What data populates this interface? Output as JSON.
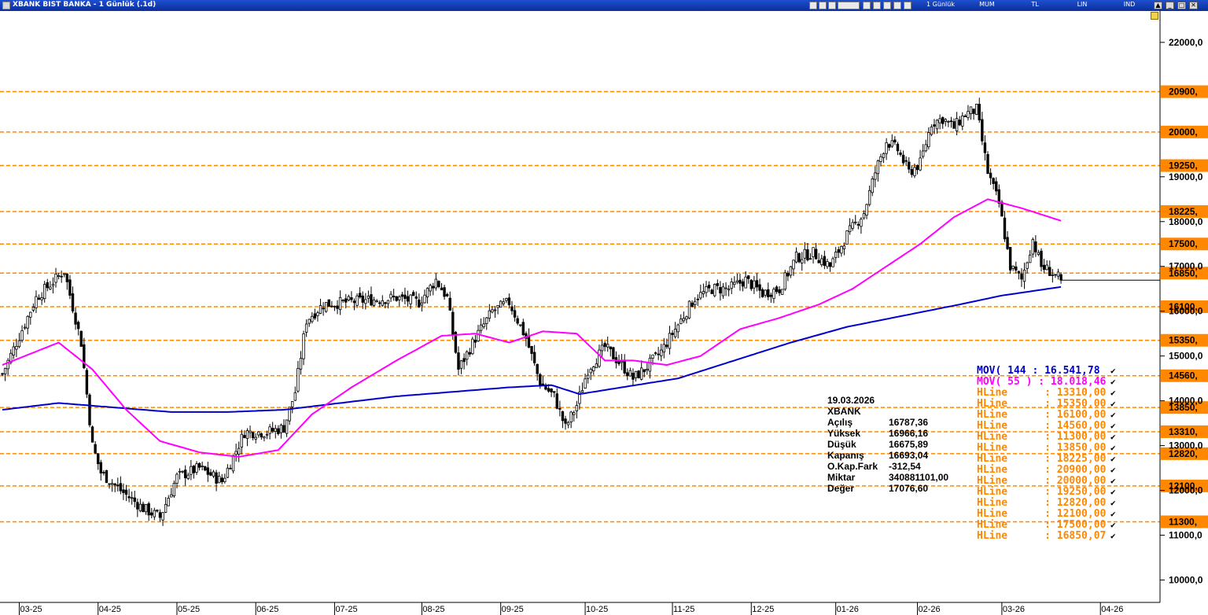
{
  "window": {
    "title": "XBANK BIST BANKA - 1 Günlük (.1d)",
    "modes": [
      "1 Günlük",
      "MUM",
      "TL",
      "LIN",
      "IND"
    ]
  },
  "chart_data": {
    "type": "candlestick",
    "ylim": [
      9500,
      22700
    ],
    "yticks": [
      "10000,0",
      "11000,0",
      "12000,0",
      "13000,0",
      "14000,0",
      "15000,0",
      "16000,0",
      "17000,0",
      "18000,0",
      "19000,0",
      "22000,0"
    ],
    "ytick_values": [
      10000,
      11000,
      12000,
      13000,
      14000,
      15000,
      16000,
      17000,
      18000,
      19000,
      22000
    ],
    "xticks": [
      "03-25",
      "04-25",
      "05-25",
      "06-25",
      "07-25",
      "08-25",
      "09-25",
      "10-25",
      "11-25",
      "12-25",
      "01-26",
      "02-26",
      "03-26",
      "04-26"
    ],
    "hlines": [
      {
        "value": 20900,
        "label": "20900,"
      },
      {
        "value": 20000,
        "label": "20000,"
      },
      {
        "value": 19250,
        "label": "19250,"
      },
      {
        "value": 18225,
        "label": "18225,"
      },
      {
        "value": 17500,
        "label": "17500,"
      },
      {
        "value": 16850.07,
        "label": "16850,"
      },
      {
        "value": 16100,
        "label": "16100,"
      },
      {
        "value": 15350,
        "label": "15350,"
      },
      {
        "value": 14560,
        "label": "14560,"
      },
      {
        "value": 13850,
        "label": "13850,"
      },
      {
        "value": 13310,
        "label": "13310,"
      },
      {
        "value": 12820,
        "label": "12820,"
      },
      {
        "value": 12100,
        "label": "12100,"
      },
      {
        "value": 11300,
        "label": "11300,"
      }
    ],
    "last_price": 16693.04,
    "keypoints": [
      [
        0,
        14600
      ],
      [
        5,
        15300
      ],
      [
        12,
        16300
      ],
      [
        22,
        16900
      ],
      [
        28,
        15300
      ],
      [
        32,
        13000
      ],
      [
        35,
        12400
      ],
      [
        42,
        12000
      ],
      [
        50,
        11600
      ],
      [
        56,
        11400
      ],
      [
        62,
        12300
      ],
      [
        70,
        12500
      ],
      [
        78,
        12200
      ],
      [
        86,
        13300
      ],
      [
        94,
        13300
      ],
      [
        100,
        13400
      ],
      [
        104,
        14200
      ],
      [
        108,
        15800
      ],
      [
        114,
        16150
      ],
      [
        122,
        16200
      ],
      [
        130,
        16250
      ],
      [
        140,
        16300
      ],
      [
        148,
        16200
      ],
      [
        154,
        16700
      ],
      [
        158,
        16300
      ],
      [
        162,
        14700
      ],
      [
        168,
        15400
      ],
      [
        174,
        16000
      ],
      [
        180,
        16200
      ],
      [
        186,
        15400
      ],
      [
        191,
        14400
      ],
      [
        196,
        14100
      ],
      [
        200,
        13400
      ],
      [
        204,
        13900
      ],
      [
        208,
        14700
      ],
      [
        214,
        15200
      ],
      [
        220,
        14800
      ],
      [
        224,
        14500
      ],
      [
        228,
        14700
      ],
      [
        234,
        15100
      ],
      [
        240,
        15700
      ],
      [
        246,
        16300
      ],
      [
        252,
        16500
      ],
      [
        258,
        16500
      ],
      [
        264,
        16700
      ],
      [
        270,
        16400
      ],
      [
        276,
        16500
      ],
      [
        282,
        17200
      ],
      [
        288,
        17300
      ],
      [
        294,
        17000
      ],
      [
        300,
        17700
      ],
      [
        306,
        18200
      ],
      [
        310,
        19100
      ],
      [
        314,
        19800
      ],
      [
        318,
        19600
      ],
      [
        322,
        19100
      ],
      [
        326,
        19300
      ],
      [
        330,
        20200
      ],
      [
        334,
        20300
      ],
      [
        338,
        20100
      ],
      [
        342,
        20400
      ],
      [
        346,
        20500
      ],
      [
        350,
        19100
      ],
      [
        354,
        18400
      ],
      [
        358,
        17000
      ],
      [
        362,
        16700
      ],
      [
        366,
        17600
      ],
      [
        369,
        17000
      ],
      [
        372,
        16900
      ],
      [
        376,
        16693
      ]
    ],
    "ma144_points": [
      [
        0,
        13800
      ],
      [
        20,
        13950
      ],
      [
        40,
        13850
      ],
      [
        60,
        13750
      ],
      [
        80,
        13750
      ],
      [
        100,
        13800
      ],
      [
        120,
        13950
      ],
      [
        140,
        14100
      ],
      [
        160,
        14200
      ],
      [
        180,
        14300
      ],
      [
        195,
        14350
      ],
      [
        205,
        14150
      ],
      [
        220,
        14300
      ],
      [
        240,
        14500
      ],
      [
        260,
        14900
      ],
      [
        280,
        15300
      ],
      [
        300,
        15650
      ],
      [
        320,
        15900
      ],
      [
        340,
        16150
      ],
      [
        355,
        16350
      ],
      [
        376,
        16541.78
      ]
    ],
    "ma55_points": [
      [
        0,
        14800
      ],
      [
        20,
        15300
      ],
      [
        32,
        14700
      ],
      [
        44,
        13800
      ],
      [
        56,
        13100
      ],
      [
        70,
        12850
      ],
      [
        84,
        12750
      ],
      [
        98,
        12900
      ],
      [
        110,
        13700
      ],
      [
        124,
        14300
      ],
      [
        140,
        14900
      ],
      [
        156,
        15450
      ],
      [
        168,
        15500
      ],
      [
        180,
        15300
      ],
      [
        192,
        15550
      ],
      [
        204,
        15500
      ],
      [
        214,
        14900
      ],
      [
        224,
        14900
      ],
      [
        236,
        14800
      ],
      [
        248,
        15000
      ],
      [
        262,
        15600
      ],
      [
        276,
        15850
      ],
      [
        290,
        16150
      ],
      [
        302,
        16500
      ],
      [
        314,
        17000
      ],
      [
        326,
        17500
      ],
      [
        338,
        18100
      ],
      [
        350,
        18500
      ],
      [
        362,
        18300
      ],
      [
        376,
        18018.46
      ]
    ]
  },
  "info_panel": {
    "date": "19.03.2026",
    "symbol": "XBANK",
    "rows": [
      {
        "label": "Açılış",
        "value": "16787,36"
      },
      {
        "label": "Yüksek",
        "value": "16966,16"
      },
      {
        "label": "Düşük",
        "value": "16675,89"
      },
      {
        "label": "Kapanış",
        "value": "16693,04"
      },
      {
        "label": "O.Kap.Fark",
        "value": "-312,54"
      },
      {
        "label": "Miktar",
        "value": "340881101,00"
      },
      {
        "label": "Değer",
        "value": "17076,60"
      }
    ]
  },
  "legend": {
    "entries": [
      {
        "text": "MOV( 144 : 16.541,78",
        "color": "#0000cc"
      },
      {
        "text": "MOV( 55 ) : 18.018,46",
        "color": "#ff00ff"
      },
      {
        "text": "HLine      : 13310,00",
        "color": "#ff8800"
      },
      {
        "text": "HLine      : 15350,00",
        "color": "#ff8800"
      },
      {
        "text": "HLine      : 16100,00",
        "color": "#ff8800"
      },
      {
        "text": "HLine      : 14560,00",
        "color": "#ff8800"
      },
      {
        "text": "HLine      : 11300,00",
        "color": "#ff8800"
      },
      {
        "text": "HLine      : 13850,00",
        "color": "#ff8800"
      },
      {
        "text": "HLine      : 18225,00",
        "color": "#ff8800"
      },
      {
        "text": "HLine      : 20900,00",
        "color": "#ff8800"
      },
      {
        "text": "HLine      : 20000,00",
        "color": "#ff8800"
      },
      {
        "text": "HLine      : 19250,00",
        "color": "#ff8800"
      },
      {
        "text": "HLine      : 12820,00",
        "color": "#ff8800"
      },
      {
        "text": "HLine      : 12100,00",
        "color": "#ff8800"
      },
      {
        "text": "HLine      : 17500,00",
        "color": "#ff8800"
      },
      {
        "text": "HLine      : 16850,07",
        "color": "#ff8800"
      }
    ],
    "check_symbol": "✔"
  },
  "colors": {
    "hline": "#ff8800",
    "ma144": "#0000cc",
    "ma55": "#ff00ff",
    "candle": "#000000"
  }
}
